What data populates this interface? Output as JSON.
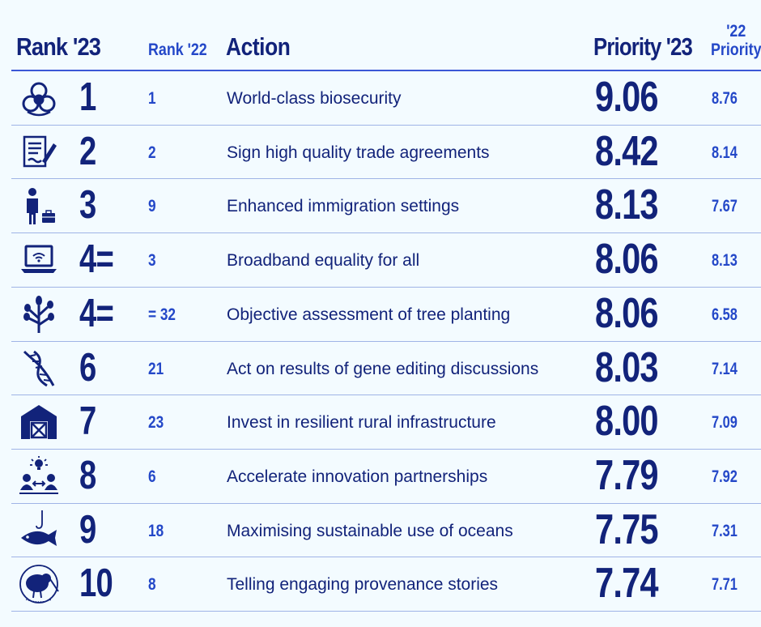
{
  "headers": {
    "rank23": "Rank '23",
    "rank22": "Rank '22",
    "action": "Action",
    "priority23": "Priority '23",
    "priority22_line1": "'22",
    "priority22_line2": "Priority"
  },
  "rows": [
    {
      "icon": "biohazard-icon",
      "rank23": "1",
      "rank22": "1",
      "action": "World-class biosecurity",
      "priority23": "9.06",
      "priority22": "8.76"
    },
    {
      "icon": "document-sign-icon",
      "rank23": "2",
      "rank22": "2",
      "action": "Sign high quality trade agreements",
      "priority23": "8.42",
      "priority22": "8.14"
    },
    {
      "icon": "traveller-luggage-icon",
      "rank23": "3",
      "rank22": "9",
      "action": "Enhanced immigration settings",
      "priority23": "8.13",
      "priority22": "7.67"
    },
    {
      "icon": "laptop-wifi-icon",
      "rank23": "4=",
      "rank22": "3",
      "action": "Broadband equality for all",
      "priority23": "8.06",
      "priority22": "8.13"
    },
    {
      "icon": "tree-icon",
      "rank23": "4=",
      "rank22": "= 32",
      "action": "Objective assessment of tree planting",
      "priority23": "8.06",
      "priority22": "6.58"
    },
    {
      "icon": "dna-icon",
      "rank23": "6",
      "rank22": "21",
      "action": "Act on results of gene editing discussions",
      "priority23": "8.03",
      "priority22": "7.14"
    },
    {
      "icon": "barn-icon",
      "rank23": "7",
      "rank22": "23",
      "action": "Invest in resilient rural infrastructure",
      "priority23": "8.00",
      "priority22": "7.09"
    },
    {
      "icon": "idea-partnership-icon",
      "rank23": "8",
      "rank22": "6",
      "action": "Accelerate innovation partnerships",
      "priority23": "7.79",
      "priority22": "7.92"
    },
    {
      "icon": "fish-hook-icon",
      "rank23": "9",
      "rank22": "18",
      "action": "Maximising sustainable use of oceans",
      "priority23": "7.75",
      "priority22": "7.31"
    },
    {
      "icon": "kiwi-bird-icon",
      "rank23": "10",
      "rank22": "8",
      "action": "Telling engaging provenance stories",
      "priority23": "7.74",
      "priority22": "7.71"
    }
  ],
  "colors": {
    "background": "#f3fbff",
    "navy": "#12237a",
    "blue": "#2448c8",
    "rule": "#3b57d6",
    "row_rule": "#9fb4e6"
  }
}
